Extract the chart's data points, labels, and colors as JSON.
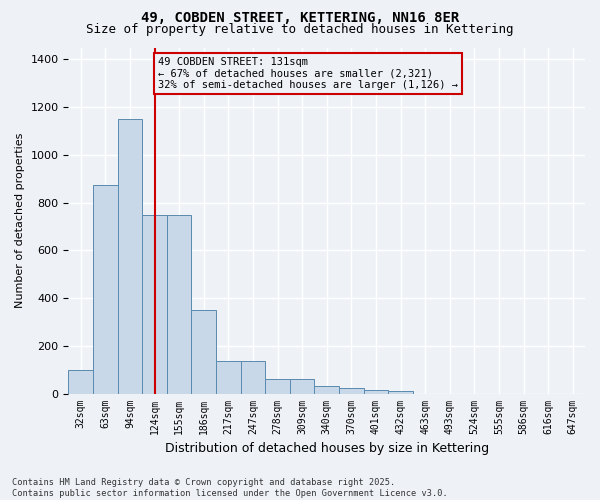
{
  "title1": "49, COBDEN STREET, KETTERING, NN16 8ER",
  "title2": "Size of property relative to detached houses in Kettering",
  "xlabel": "Distribution of detached houses by size in Kettering",
  "ylabel": "Number of detached properties",
  "bin_labels": [
    "32sqm",
    "63sqm",
    "94sqm",
    "124sqm",
    "155sqm",
    "186sqm",
    "217sqm",
    "247sqm",
    "278sqm",
    "309sqm",
    "340sqm",
    "370sqm",
    "401sqm",
    "432sqm",
    "463sqm",
    "493sqm",
    "524sqm",
    "555sqm",
    "586sqm",
    "616sqm",
    "647sqm"
  ],
  "bar_values": [
    100,
    875,
    1150,
    750,
    750,
    350,
    135,
    135,
    60,
    60,
    30,
    25,
    15,
    10,
    0,
    0,
    0,
    0,
    0,
    0,
    0
  ],
  "bar_color": "#c8d8e8",
  "bar_edge_color": "#5a8ab0",
  "vline_x": 3,
  "vline_color": "#cc0000",
  "annotation_text": "49 COBDEN STREET: 131sqm\n← 67% of detached houses are smaller (2,321)\n32% of semi-detached houses are larger (1,126) →",
  "annotation_box_color": "#cc0000",
  "ylim": [
    0,
    1450
  ],
  "yticks": [
    0,
    200,
    400,
    600,
    800,
    1000,
    1200,
    1400
  ],
  "background_color": "#eef2f7",
  "grid_color": "#ffffff",
  "footnote": "Contains HM Land Registry data © Crown copyright and database right 2025.\nContains public sector information licensed under the Open Government Licence v3.0."
}
